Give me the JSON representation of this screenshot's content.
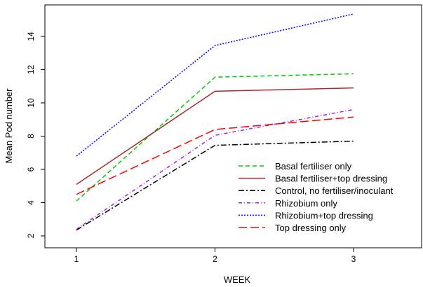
{
  "chart_data": {
    "type": "line",
    "title": "",
    "xlabel": "WEEK",
    "ylabel": "Mean Pod number",
    "x": [
      1,
      2,
      3
    ],
    "x_ticks": [
      "1",
      "2",
      "3"
    ],
    "y_ticks": [
      "2",
      "4",
      "6",
      "8",
      "10",
      "12",
      "14"
    ],
    "xlim": [
      0.99,
      3.01
    ],
    "ylim": [
      1.7,
      15.5
    ],
    "grid": false,
    "legend_position": "bottom-right",
    "series": [
      {
        "name": "Basal fertiliser only",
        "values": [
          4.1,
          11.55,
          11.75
        ],
        "color": "#00cc00",
        "dash": "6,4"
      },
      {
        "name": "Basal fertiliser+top dressing",
        "values": [
          5.1,
          10.7,
          10.9
        ],
        "color": "#a52a2a",
        "dash": ""
      },
      {
        "name": "Control, no fertiliser/inoculant",
        "values": [
          2.35,
          7.45,
          7.7
        ],
        "color": "#000000",
        "dash": "8,3,2,3"
      },
      {
        "name": "Rhizobium only",
        "values": [
          2.4,
          8.05,
          9.6
        ],
        "color": "#a020f0",
        "dash": "5,3,1,3"
      },
      {
        "name": "Rhizobium+top dressing",
        "values": [
          6.8,
          13.45,
          15.35
        ],
        "color": "#0000ff",
        "dash": "2,2"
      },
      {
        "name": "Top dressing only",
        "values": [
          4.5,
          8.4,
          9.15
        ],
        "color": "#ff0000",
        "dash": "12,5"
      }
    ]
  }
}
